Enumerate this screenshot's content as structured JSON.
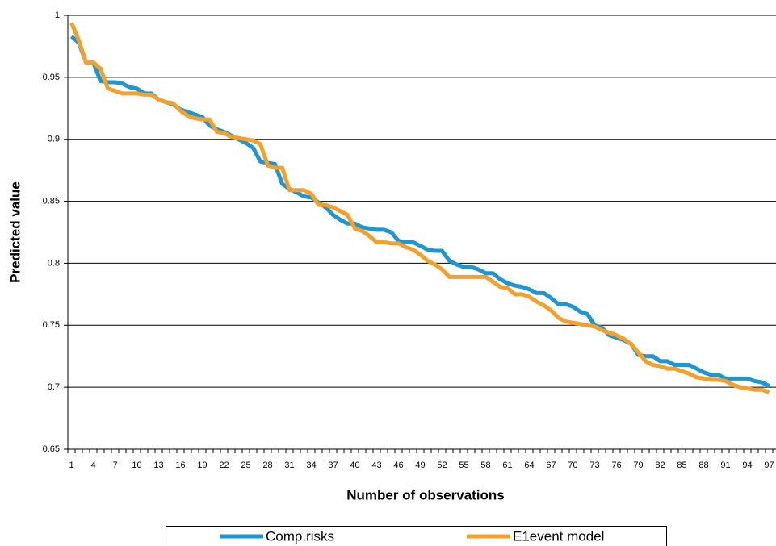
{
  "chart_data": {
    "type": "line",
    "x_label": "Number of observations",
    "y_label": "Predicted value",
    "categories": [
      "1",
      null,
      null,
      "4",
      null,
      null,
      "7",
      null,
      null,
      "10",
      null,
      null,
      "13",
      null,
      null,
      "16",
      null,
      null,
      "19",
      null,
      null,
      "22",
      null,
      null,
      "25",
      null,
      null,
      "28",
      null,
      null,
      "31",
      null,
      null,
      "34",
      null,
      null,
      "37",
      null,
      null,
      "40",
      null,
      null,
      "43",
      null,
      null,
      "46",
      null,
      null,
      "49",
      null,
      null,
      "52",
      null,
      null,
      "55",
      null,
      null,
      "58",
      null,
      null,
      "61",
      null,
      null,
      "64",
      null,
      null,
      "67",
      null,
      null,
      "70",
      null,
      null,
      "73",
      null,
      null,
      "76",
      null,
      null,
      "79",
      null,
      null,
      "82",
      null,
      null,
      "85",
      null,
      null,
      "88",
      null,
      null,
      "91",
      null,
      null,
      "94",
      null,
      null,
      "97"
    ],
    "series": [
      {
        "name": "Comp.risks",
        "color": "#1e96d2",
        "values": [
          0.983,
          0.978,
          0.962,
          0.962,
          0.947,
          0.946,
          0.946,
          0.945,
          0.942,
          0.941,
          0.937,
          0.937,
          0.932,
          0.93,
          0.928,
          0.924,
          0.922,
          0.92,
          0.918,
          0.911,
          0.908,
          0.906,
          0.903,
          0.9,
          0.897,
          0.893,
          0.882,
          0.881,
          0.88,
          0.864,
          0.86,
          0.857,
          0.854,
          0.853,
          0.849,
          0.845,
          0.839,
          0.835,
          0.832,
          0.832,
          0.829,
          0.828,
          0.827,
          0.827,
          0.825,
          0.818,
          0.817,
          0.817,
          0.814,
          0.811,
          0.81,
          0.81,
          0.802,
          0.799,
          0.797,
          0.797,
          0.795,
          0.792,
          0.792,
          0.787,
          0.784,
          0.782,
          0.781,
          0.779,
          0.776,
          0.776,
          0.772,
          0.767,
          0.767,
          0.765,
          0.761,
          0.759,
          0.75,
          0.748,
          0.742,
          0.74,
          0.738,
          0.735,
          0.726,
          0.725,
          0.725,
          0.721,
          0.721,
          0.718,
          0.718,
          0.718,
          0.715,
          0.712,
          0.71,
          0.71,
          0.707,
          0.707,
          0.707,
          0.707,
          0.705,
          0.704,
          0.701
        ]
      },
      {
        "name": "E1event model",
        "color": "#f5a02a",
        "values": [
          0.994,
          0.98,
          0.962,
          0.962,
          0.957,
          0.941,
          0.939,
          0.937,
          0.937,
          0.937,
          0.936,
          0.936,
          0.932,
          0.93,
          0.929,
          0.923,
          0.919,
          0.917,
          0.916,
          0.916,
          0.906,
          0.905,
          0.902,
          0.901,
          0.9,
          0.899,
          0.896,
          0.879,
          0.877,
          0.877,
          0.859,
          0.859,
          0.859,
          0.856,
          0.847,
          0.847,
          0.845,
          0.842,
          0.839,
          0.828,
          0.826,
          0.822,
          0.817,
          0.817,
          0.816,
          0.816,
          0.813,
          0.811,
          0.807,
          0.802,
          0.799,
          0.795,
          0.789,
          0.789,
          0.789,
          0.789,
          0.789,
          0.789,
          0.785,
          0.781,
          0.78,
          0.775,
          0.775,
          0.773,
          0.769,
          0.766,
          0.762,
          0.756,
          0.753,
          0.752,
          0.751,
          0.75,
          0.749,
          0.746,
          0.744,
          0.742,
          0.739,
          0.735,
          0.728,
          0.721,
          0.718,
          0.717,
          0.715,
          0.715,
          0.713,
          0.711,
          0.708,
          0.707,
          0.706,
          0.706,
          0.705,
          0.702,
          0.7,
          0.699,
          0.698,
          0.698,
          0.696
        ]
      }
    ],
    "ylim": [
      0.65,
      1
    ],
    "yticks": [
      0.65,
      0.7,
      0.75,
      0.8,
      0.85,
      0.9,
      0.95,
      1
    ],
    "grid": true,
    "legend": "bottom"
  }
}
